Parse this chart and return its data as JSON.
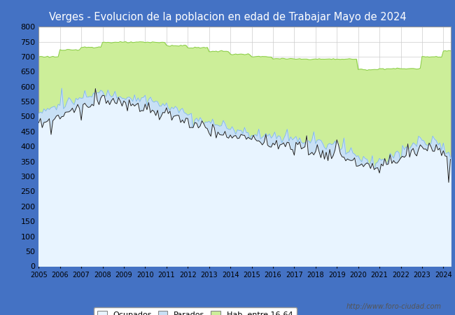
{
  "title": "Verges - Evolucion de la poblacion en edad de Trabajar Mayo de 2024",
  "title_bg_color": "#4472C4",
  "title_text_color": "#FFFFFF",
  "ylim": [
    0,
    800
  ],
  "yticks": [
    0,
    50,
    100,
    150,
    200,
    250,
    300,
    350,
    400,
    450,
    500,
    550,
    600,
    650,
    700,
    750,
    800
  ],
  "watermark": "http://www.foro-ciudad.com",
  "legend_labels": [
    "Ocupados",
    "Parados",
    "Hab. entre 16-64"
  ],
  "color_ocupados_fill": "#E8F4FF",
  "color_ocupados_line": "#222222",
  "color_parados_fill": "#C8E0F5",
  "color_parados_line": "#80B8E8",
  "color_hab_fill": "#CCEE99",
  "color_hab_line": "#88CC44",
  "grid_color": "#CCCCCC",
  "plot_bg_color": "#FFFFFF",
  "outer_bg_color": "#4472C4",
  "hab_annual": [
    700,
    722,
    732,
    748,
    748,
    748,
    737,
    730,
    718,
    708,
    700,
    693,
    692,
    692,
    692,
    657,
    660,
    660,
    700,
    720,
    695
  ],
  "hab_years": [
    2005,
    2006,
    2007,
    2008,
    2009,
    2010,
    2011,
    2012,
    2013,
    2014,
    2015,
    2016,
    2017,
    2018,
    2019,
    2020,
    2021,
    2022,
    2023,
    2024,
    2024.42
  ],
  "parados_annual": [
    510,
    540,
    560,
    580,
    570,
    555,
    535,
    510,
    480,
    460,
    445,
    435,
    425,
    415,
    405,
    365,
    350,
    380,
    420,
    400,
    355
  ],
  "parados_years": [
    2005,
    2006,
    2007,
    2008,
    2009,
    2010,
    2011,
    2012,
    2013,
    2014,
    2015,
    2016,
    2017,
    2018,
    2019,
    2020,
    2021,
    2022,
    2023,
    2024,
    2024.42
  ],
  "ocupados_annual": [
    470,
    505,
    540,
    560,
    545,
    525,
    505,
    480,
    455,
    435,
    422,
    412,
    402,
    392,
    382,
    345,
    330,
    360,
    400,
    380,
    335
  ],
  "ocupados_years": [
    2005,
    2006,
    2007,
    2008,
    2009,
    2010,
    2011,
    2012,
    2013,
    2014,
    2015,
    2016,
    2017,
    2018,
    2019,
    2020,
    2021,
    2022,
    2023,
    2024,
    2024.42
  ]
}
